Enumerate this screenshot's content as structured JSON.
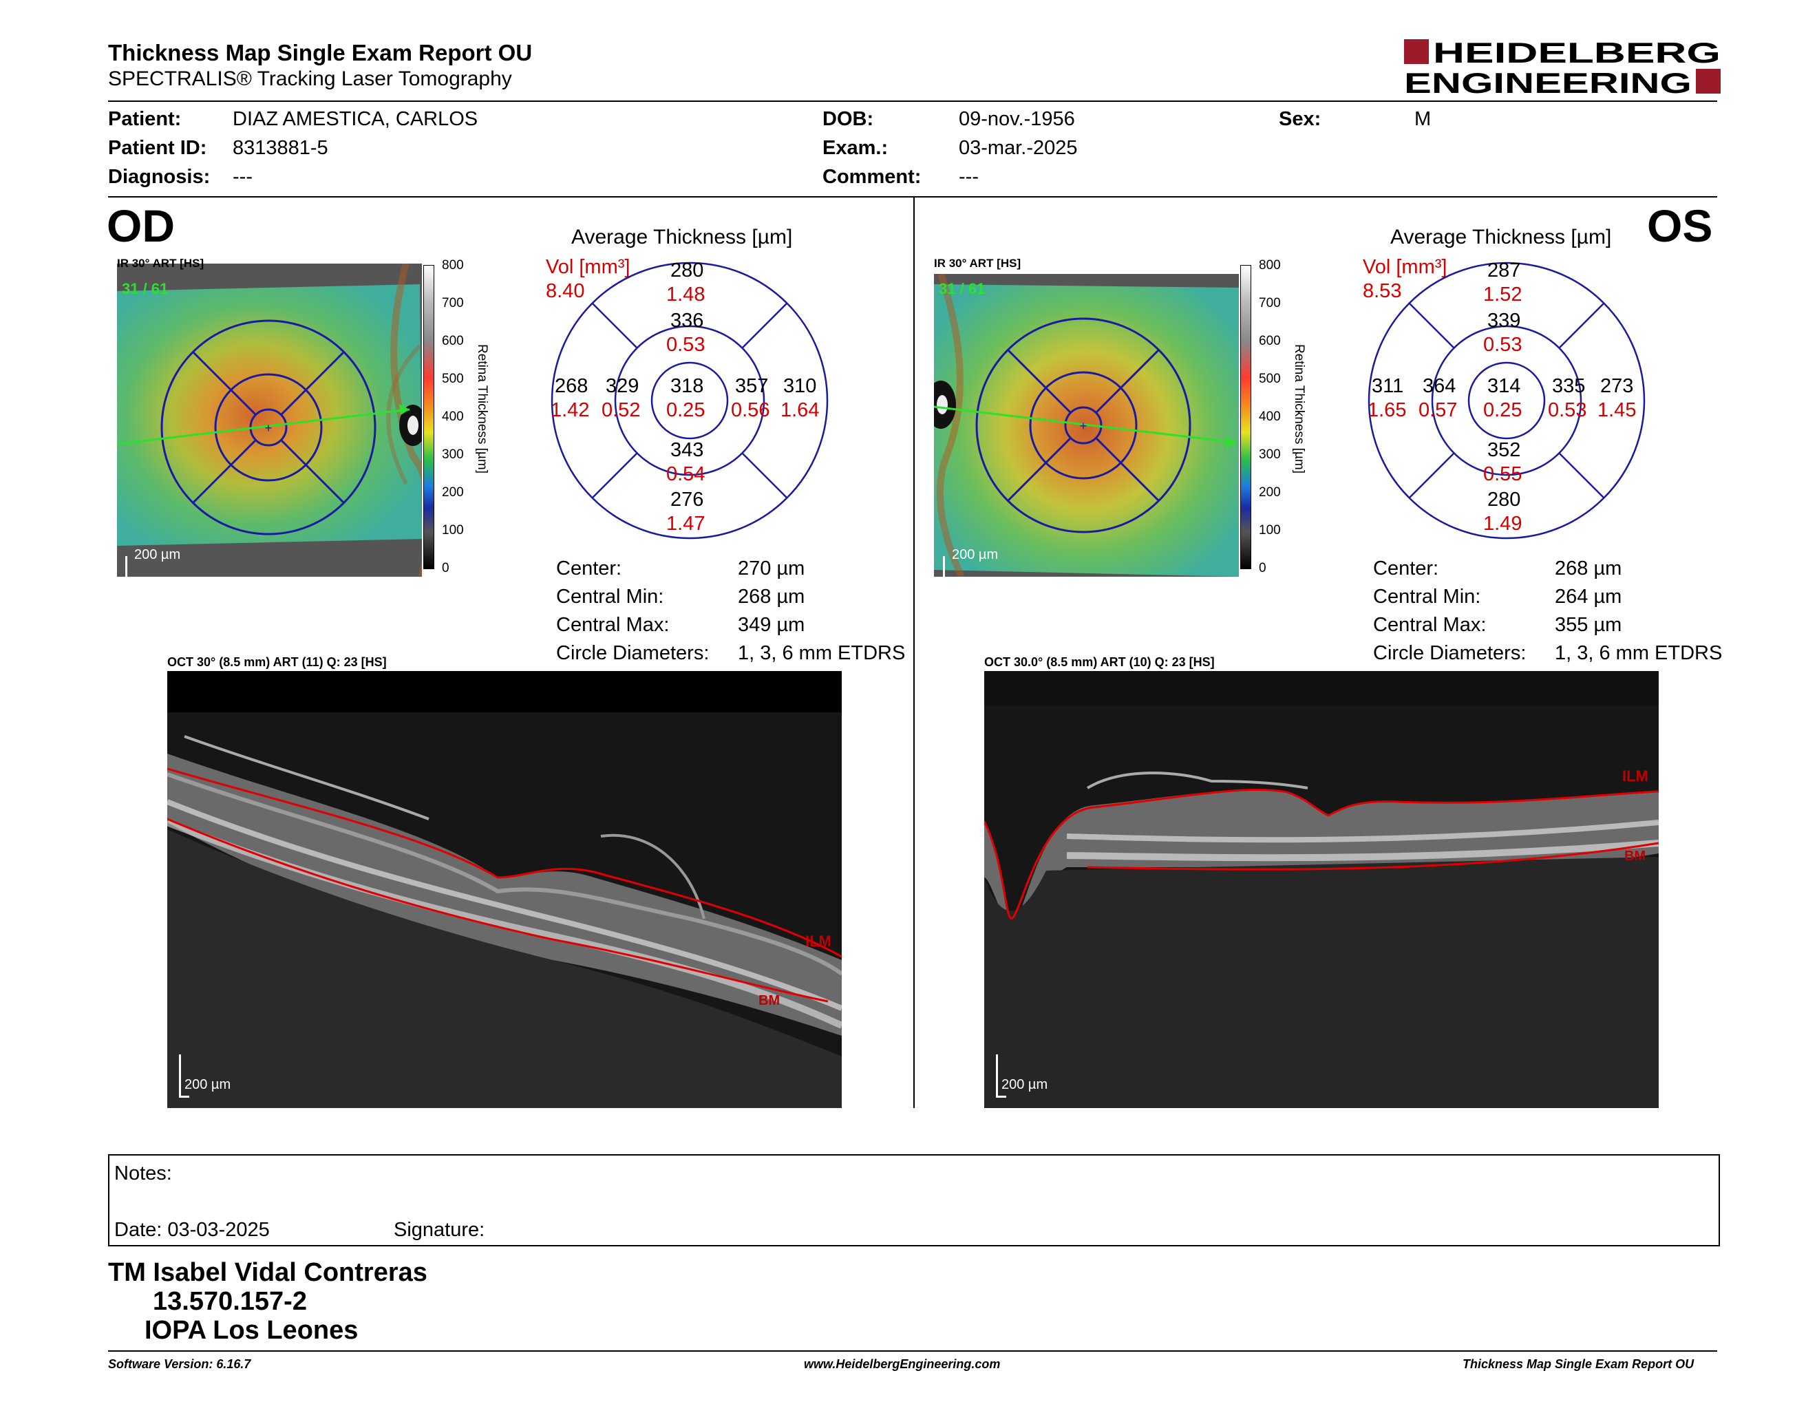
{
  "header": {
    "title": "Thickness Map Single Exam Report OU",
    "subtitle": "SPECTRALIS® Tracking Laser Tomography",
    "logo_line1": "HEIDELBERG",
    "logo_line2": "ENGINEERING"
  },
  "patient": {
    "patient_label": "Patient:",
    "patient_value": "DIAZ AMESTICA, CARLOS",
    "id_label": "Patient ID:",
    "id_value": "8313881-5",
    "diagnosis_label": "Diagnosis:",
    "diagnosis_value": "---",
    "dob_label": "DOB:",
    "dob_value": "09-nov.-1956",
    "exam_label": "Exam.:",
    "exam_value": "03-mar.-2025",
    "comment_label": "Comment:",
    "comment_value": "---",
    "sex_label": "Sex:",
    "sex_value": "M"
  },
  "od": {
    "eye": "OD",
    "ir_label": "IR 30° ART [HS]",
    "frame": "31 / 61",
    "scale": "200 µm",
    "avg_title": "Average Thickness [µm]",
    "vol_label": "Vol [mm³]",
    "vol_value": "8.40",
    "grid": {
      "center": {
        "t": "318",
        "v": "0.25"
      },
      "inner_sup": {
        "t": "336",
        "v": "0.53"
      },
      "inner_inf": {
        "t": "343",
        "v": "0.54"
      },
      "inner_left": {
        "t": "329",
        "v": "0.52"
      },
      "inner_right": {
        "t": "357",
        "v": "0.56"
      },
      "outer_sup": {
        "t": "280",
        "v": "1.48"
      },
      "outer_inf": {
        "t": "276",
        "v": "1.47"
      },
      "outer_left": {
        "t": "268",
        "v": "1.42"
      },
      "outer_right": {
        "t": "310",
        "v": "1.64"
      }
    },
    "stats": [
      {
        "label": "Center:",
        "value": "270 µm"
      },
      {
        "label": "Central Min:",
        "value": "268 µm"
      },
      {
        "label": "Central Max:",
        "value": "349 µm"
      },
      {
        "label": "Circle Diameters:",
        "value": "1, 3, 6 mm ETDRS"
      }
    ],
    "oct_label": "OCT 30° (8.5 mm) ART (11) Q: 23 [HS]",
    "oct_scale": "200 µm",
    "ilm": "ILM",
    "bm": "BM"
  },
  "os": {
    "eye": "OS",
    "ir_label": "IR 30° ART [HS]",
    "frame": "31 / 61",
    "scale": "200 µm",
    "avg_title": "Average Thickness [µm]",
    "vol_label": "Vol [mm³]",
    "vol_value": "8.53",
    "grid": {
      "center": {
        "t": "314",
        "v": "0.25"
      },
      "inner_sup": {
        "t": "339",
        "v": "0.53"
      },
      "inner_inf": {
        "t": "352",
        "v": "0.55"
      },
      "inner_left": {
        "t": "364",
        "v": "0.57"
      },
      "inner_right": {
        "t": "335",
        "v": "0.53"
      },
      "outer_sup": {
        "t": "287",
        "v": "1.52"
      },
      "outer_inf": {
        "t": "280",
        "v": "1.49"
      },
      "outer_left": {
        "t": "311",
        "v": "1.65"
      },
      "outer_right": {
        "t": "273",
        "v": "1.45"
      }
    },
    "stats": [
      {
        "label": "Center:",
        "value": "268 µm"
      },
      {
        "label": "Central Min:",
        "value": "264 µm"
      },
      {
        "label": "Central Max:",
        "value": "355 µm"
      },
      {
        "label": "Circle Diameters:",
        "value": "1, 3, 6 mm ETDRS"
      }
    ],
    "oct_label": "OCT 30.0° (8.5 mm) ART (10) Q: 23 [HS]",
    "oct_scale": "200 µm",
    "ilm": "ILM",
    "bm": "BM"
  },
  "colorbar": {
    "ticks": [
      "800",
      "700",
      "600",
      "500",
      "400",
      "300",
      "200",
      "100",
      "0"
    ],
    "title": "Retina Thickness [µm]"
  },
  "notes": {
    "notes_label": "Notes:",
    "date_label": "Date: 03-03-2025",
    "signature_label": "Signature:"
  },
  "signature_block": {
    "name": "TM Isabel Vidal Contreras",
    "rut": "13.570.157-2",
    "org": "IOPA Los Leones"
  },
  "footer": {
    "software": "Software Version: 6.16.7",
    "website": "www.HeidelbergEngineering.com",
    "report": "Thickness Map Single Exam Report OU"
  },
  "colors": {
    "grid_blue": "#1a1aa0",
    "red_text": "#d40000",
    "logo_red": "#9b1b2a"
  }
}
